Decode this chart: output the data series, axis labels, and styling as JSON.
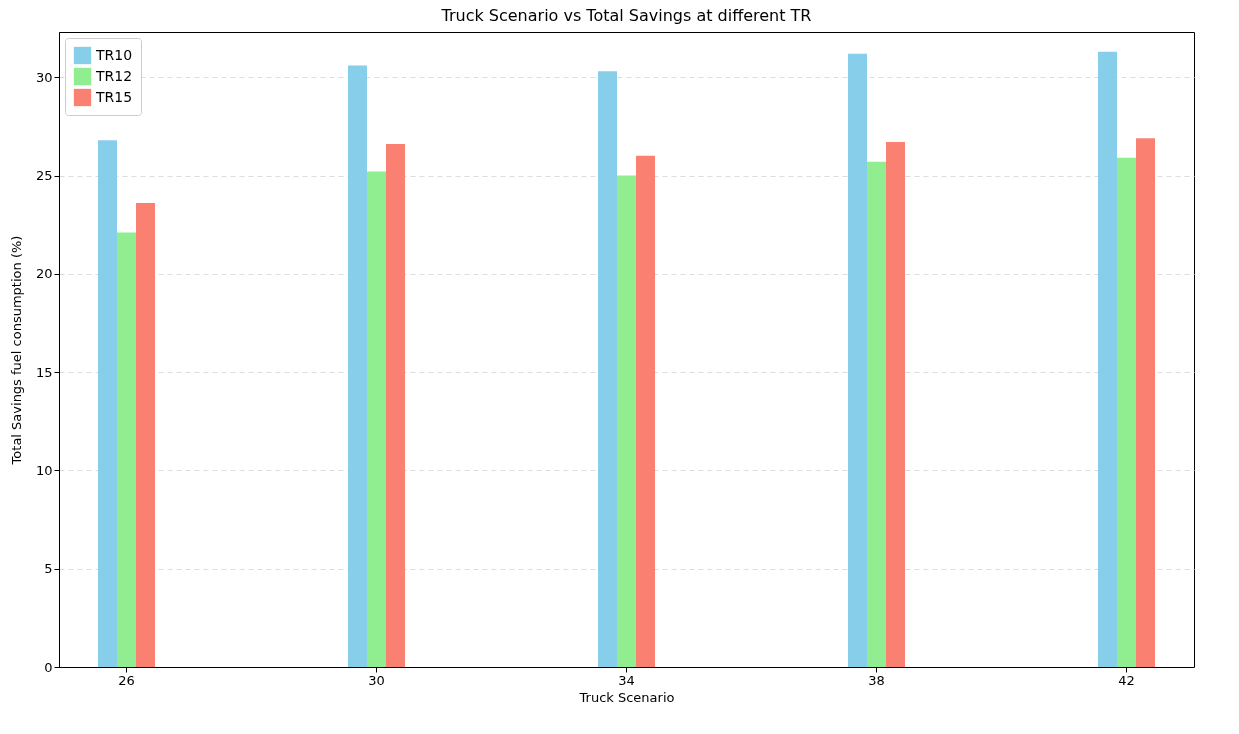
{
  "chart_data": {
    "type": "bar",
    "title": "Truck Scenario vs Total Savings at different TR",
    "xlabel": "Truck Scenario",
    "ylabel": "Total Savings fuel consumption (%)",
    "categories": [
      "26",
      "30",
      "34",
      "38",
      "42"
    ],
    "series": [
      {
        "name": "TR10",
        "color": "#87ceeb",
        "values": [
          26.8,
          30.6,
          30.3,
          31.2,
          31.3
        ]
      },
      {
        "name": "TR12",
        "color": "#90ee90",
        "values": [
          22.1,
          25.2,
          25.0,
          25.7,
          25.9
        ]
      },
      {
        "name": "TR15",
        "color": "#fa8072",
        "values": [
          23.6,
          26.6,
          26.0,
          26.7,
          26.9
        ]
      }
    ],
    "ylim": [
      0,
      32.3
    ],
    "yticks": [
      0,
      5,
      10,
      15,
      20,
      25,
      30
    ],
    "grid": "y",
    "legend": "top left"
  }
}
